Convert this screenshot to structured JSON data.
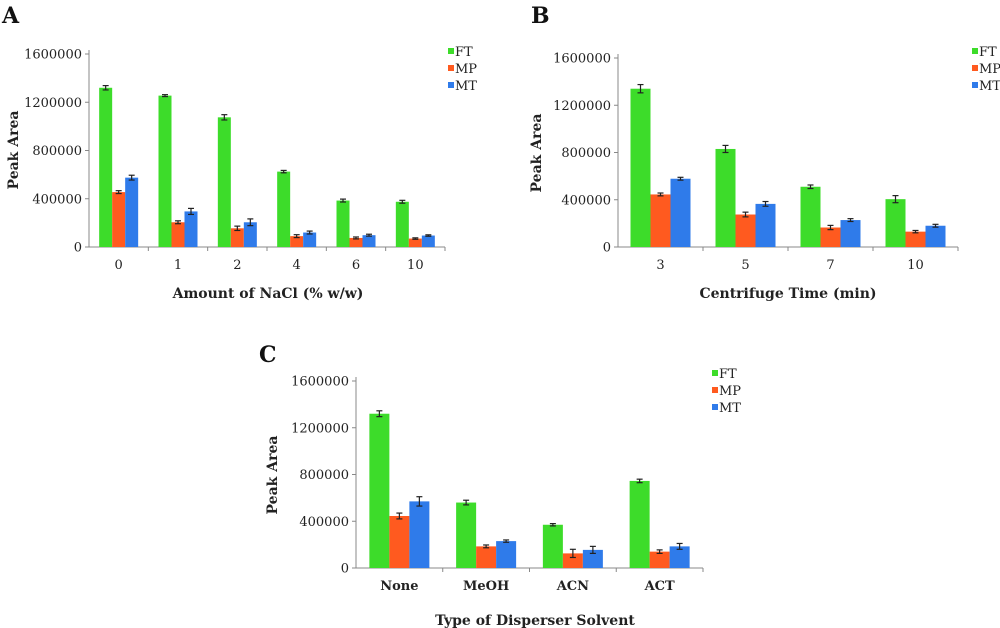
{
  "chart_data": [
    {
      "panel": "A",
      "type": "bar",
      "xlabel": "Amount of NaCl (% w/w)",
      "ylabel": "Peak Area",
      "categories": [
        "0",
        "1",
        "2",
        "4",
        "6",
        "10"
      ],
      "ylim": [
        0,
        1600000
      ],
      "yticks": [
        "0",
        "400000",
        "800000",
        "1200000",
        "1600000"
      ],
      "legend_position": "top-right",
      "series": [
        {
          "name": "FT",
          "color": "#3ddc2a",
          "values": [
            1320000,
            1255000,
            1075000,
            625000,
            385000,
            375000
          ],
          "errors": [
            18000,
            8000,
            22000,
            10000,
            12000,
            12000
          ]
        },
        {
          "name": "MP",
          "color": "#ff5a1f",
          "values": [
            455000,
            205000,
            155000,
            90000,
            75000,
            70000
          ],
          "errors": [
            12000,
            12000,
            18000,
            12000,
            8000,
            6000
          ]
        },
        {
          "name": "MT",
          "color": "#2f7bea",
          "values": [
            575000,
            295000,
            205000,
            120000,
            98000,
            95000
          ],
          "errors": [
            20000,
            25000,
            28000,
            12000,
            8000,
            6000
          ]
        }
      ]
    },
    {
      "panel": "B",
      "type": "bar",
      "xlabel": "Centrifuge Time (min)",
      "ylabel": "Peak Area",
      "categories": [
        "3",
        "5",
        "7",
        "10"
      ],
      "ylim": [
        0,
        1600000
      ],
      "yticks": [
        "0",
        "400000",
        "800000",
        "1200000",
        "1600000"
      ],
      "legend_position": "top-right",
      "series": [
        {
          "name": "FT",
          "color": "#3ddc2a",
          "values": [
            1340000,
            830000,
            510000,
            405000
          ],
          "errors": [
            35000,
            30000,
            15000,
            30000
          ]
        },
        {
          "name": "MP",
          "color": "#ff5a1f",
          "values": [
            445000,
            275000,
            165000,
            130000
          ],
          "errors": [
            12000,
            20000,
            18000,
            10000
          ]
        },
        {
          "name": "MT",
          "color": "#2f7bea",
          "values": [
            578000,
            365000,
            228000,
            180000
          ],
          "errors": [
            12000,
            20000,
            12000,
            12000
          ]
        }
      ]
    },
    {
      "panel": "C",
      "type": "bar",
      "xlabel": "Type of Disperser Solvent",
      "ylabel": "Peak Area",
      "categories": [
        "None",
        "MeOH",
        "ACN",
        "ACT"
      ],
      "ylim": [
        0,
        1600000
      ],
      "yticks": [
        "0",
        "400000",
        "800000",
        "1200000",
        "1600000"
      ],
      "legend_position": "top-right",
      "series": [
        {
          "name": "FT",
          "color": "#3ddc2a",
          "values": [
            1320000,
            560000,
            370000,
            745000
          ],
          "errors": [
            25000,
            20000,
            10000,
            15000
          ]
        },
        {
          "name": "MP",
          "color": "#ff5a1f",
          "values": [
            445000,
            185000,
            125000,
            140000
          ],
          "errors": [
            25000,
            12000,
            35000,
            15000
          ]
        },
        {
          "name": "MT",
          "color": "#2f7bea",
          "values": [
            570000,
            230000,
            155000,
            185000
          ],
          "errors": [
            40000,
            10000,
            30000,
            25000
          ]
        }
      ]
    }
  ]
}
